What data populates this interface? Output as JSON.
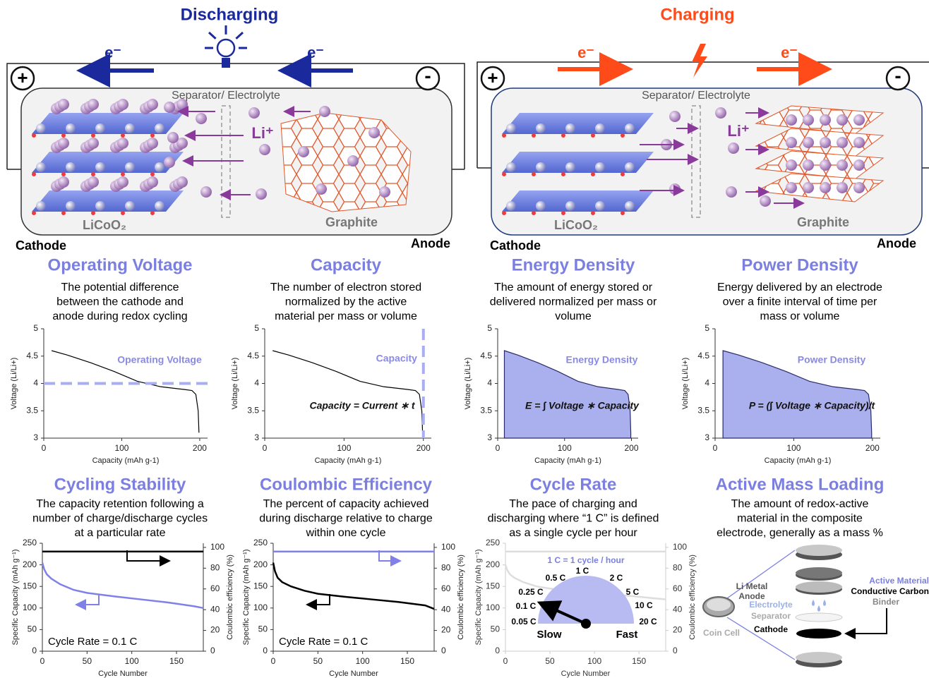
{
  "discharging": {
    "title": "Discharging",
    "electron_left": "e⁻",
    "electron_right": "e⁻",
    "plus": "+",
    "minus": "-",
    "separator": "Separator/ Electrolyte",
    "ion": "Li⁺",
    "cathode_material": "LiCoO₂",
    "anode_material": "Graphite",
    "cathode": "Cathode",
    "anode": "Anode"
  },
  "charging": {
    "title": "Charging",
    "electron_left": "e⁻",
    "electron_right": "e⁻",
    "plus": "+",
    "minus": "-",
    "separator": "Separator/ Electrolyte",
    "ion": "Li⁺",
    "cathode_material": "LiCoO₂",
    "anode_material": "Graphite",
    "cathode": "Cathode",
    "anode": "Anode"
  },
  "panels": [
    {
      "title": "Operating Voltage",
      "description": [
        "The potential difference",
        "between the cathode and",
        "anode during redox cycling"
      ],
      "chart": {
        "type": "line",
        "xlabel": "Capacity (mAh g-1)",
        "ylabel": "Voltage (Li/Li+)",
        "xlim": [
          0,
          210
        ],
        "ylim": [
          3,
          5
        ],
        "xticks": [
          0,
          100,
          200
        ],
        "yticks": [
          3,
          3.5,
          4,
          4.5,
          5
        ],
        "series": [
          {
            "color": "#000000",
            "x": [
              10,
              30,
              60,
              90,
              120,
              150,
              180,
              190,
              195,
              198,
              199
            ],
            "values": [
              4.6,
              4.52,
              4.38,
              4.22,
              4.04,
              3.94,
              3.89,
              3.87,
              3.8,
              3.5,
              3.1
            ]
          }
        ],
        "hline": 4,
        "annotation": "Operating Voltage"
      }
    },
    {
      "title": "Capacity",
      "description": [
        "The number of electron stored",
        "normalized by the active",
        "material per mass or volume"
      ],
      "chart": {
        "type": "line",
        "xlabel": "Capacity (mAh g-1)",
        "ylabel": "Voltage (Li/Li+)",
        "xlim": [
          0,
          210
        ],
        "ylim": [
          3,
          5
        ],
        "xticks": [
          0,
          100,
          200
        ],
        "yticks": [
          3,
          3.5,
          4,
          4.5,
          5
        ],
        "series": [
          {
            "color": "#000000",
            "x": [
              10,
              30,
              60,
              90,
              120,
              150,
              180,
              190,
              195,
              198,
              199
            ],
            "values": [
              4.6,
              4.52,
              4.38,
              4.22,
              4.04,
              3.94,
              3.89,
              3.87,
              3.8,
              3.5,
              3.1
            ]
          }
        ],
        "vline": 200,
        "annotation": "Capacity",
        "equation": "Capacity = Current ∗ t"
      }
    },
    {
      "title": "Energy Density",
      "description": [
        "The amount of energy stored or",
        "delivered normalized per mass or",
        "volume"
      ],
      "chart": {
        "type": "area",
        "xlabel": "Capacity (mAh g-1)",
        "ylabel": "Voltage (Li/Li+)",
        "xlim": [
          0,
          210
        ],
        "ylim": [
          3,
          5
        ],
        "xticks": [
          0,
          100,
          200
        ],
        "yticks": [
          3,
          3.5,
          4,
          4.5,
          5
        ],
        "series": [
          {
            "color": "#2a2a6a",
            "fill": "#aab0ee",
            "x": [
              10,
              30,
              60,
              90,
              120,
              150,
              180,
              190,
              195,
              198,
              199
            ],
            "values": [
              4.6,
              4.52,
              4.38,
              4.22,
              4.04,
              3.94,
              3.89,
              3.87,
              3.8,
              3.5,
              3.1
            ]
          }
        ],
        "annotation": "Energy Density",
        "equation": "E = ∫ Voltage ∗ Capacity"
      }
    },
    {
      "title": "Power Density",
      "description": [
        "Energy delivered by an electrode",
        "over a finite interval of time per",
        "mass or volume"
      ],
      "chart": {
        "type": "area",
        "xlabel": "Capacity (mAh g-1)",
        "ylabel": "Voltage (Li/Li+)",
        "xlim": [
          0,
          210
        ],
        "ylim": [
          3,
          5
        ],
        "xticks": [
          0,
          100,
          200
        ],
        "yticks": [
          3,
          3.5,
          4,
          4.5,
          5
        ],
        "series": [
          {
            "color": "#2a2a6a",
            "fill": "#aab0ee",
            "x": [
              10,
              30,
              60,
              90,
              120,
              150,
              180,
              190,
              195,
              198,
              199
            ],
            "values": [
              4.6,
              4.52,
              4.38,
              4.22,
              4.04,
              3.94,
              3.89,
              3.87,
              3.8,
              3.5,
              3.1
            ]
          }
        ],
        "annotation": "Power Density",
        "equation": "P = (∫ Voltage ∗ Capacity)/t"
      }
    },
    {
      "title": "Cycling Stability",
      "description": [
        "The capacity retention following a",
        "number of charge/discharge cycles",
        "at a particular rate"
      ],
      "chart": {
        "type": "line",
        "xlabel": "Cycle Number",
        "ylabel": "Specific Capacity (mAh g⁻¹)",
        "y2label": "Coulombic efficiency (%)",
        "xlim": [
          0,
          180
        ],
        "ylim": [
          0,
          250
        ],
        "y2lim": [
          0,
          104
        ],
        "xticks": [
          0,
          50,
          100,
          150
        ],
        "yticks": [
          0,
          50,
          100,
          150,
          200,
          250
        ],
        "y2ticks": [
          0,
          20,
          40,
          60,
          80,
          100
        ],
        "series": [
          {
            "color": "#8080e8",
            "x": [
              0,
              2,
              5,
              10,
              20,
              35,
              50,
              80,
              110,
              140,
              170,
              180
            ],
            "values": [
              205,
              190,
              178,
              168,
              155,
              142,
              135,
              127,
              120,
              113,
              104,
              100
            ]
          },
          {
            "color": "#000000",
            "axis": "y2",
            "x": [
              0,
              180
            ],
            "values": [
              96,
              96
            ]
          }
        ],
        "note": "Cycle Rate = 0.1 C"
      }
    },
    {
      "title": "Coulombic Efficiency",
      "description": [
        "The percent of capacity achieved",
        "during discharge relative to charge",
        "within one cycle"
      ],
      "chart": {
        "type": "line",
        "xlabel": "Cycle Number",
        "ylabel": "Specific Capacity (mAh g⁻¹)",
        "y2label": "Coulombic efficiency (%)",
        "xlim": [
          0,
          180
        ],
        "ylim": [
          0,
          250
        ],
        "y2lim": [
          0,
          104
        ],
        "xticks": [
          0,
          50,
          100,
          150
        ],
        "yticks": [
          0,
          50,
          100,
          150,
          200,
          250
        ],
        "y2ticks": [
          0,
          20,
          40,
          60,
          80,
          100
        ],
        "series": [
          {
            "color": "#000000",
            "x": [
              0,
              2,
              5,
              10,
              20,
              35,
              50,
              80,
              110,
              140,
              170,
              180
            ],
            "values": [
              205,
              185,
              170,
              160,
              150,
              140,
              133,
              126,
              120,
              114,
              106,
              98
            ]
          },
          {
            "color": "#8080e8",
            "axis": "y2",
            "x": [
              0,
              180
            ],
            "values": [
              96,
              96
            ]
          }
        ],
        "note": "Cycle Rate = 0.1 C"
      }
    },
    {
      "title": "Cycle Rate",
      "description": [
        "The pace of charging and",
        "discharging where “1 C” is defined",
        "as a single cycle per hour"
      ],
      "chart": {
        "type": "line",
        "xlabel": "Cycle Number",
        "ylabel": "Specific Capacity (mAh g⁻¹)",
        "y2label": "Coulombic efficiency (%)",
        "xlim": [
          0,
          180
        ],
        "ylim": [
          0,
          250
        ],
        "y2lim": [
          0,
          104
        ],
        "xticks": [
          0,
          50,
          100,
          150
        ],
        "yticks": [
          0,
          50,
          100,
          150,
          200,
          250
        ],
        "y2ticks": [
          0,
          20,
          40,
          60,
          80,
          100
        ],
        "series": [
          {
            "color": "#dddddd",
            "x": [
              0,
              2,
              5,
              10,
              20,
              35,
              50,
              80,
              110,
              140,
              170,
              180
            ],
            "values": [
              200,
              188,
              178,
              170,
              160,
              150,
              145,
              138,
              133,
              128,
              122,
              120
            ]
          },
          {
            "color": "#dddddd",
            "axis": "y2",
            "x": [
              0,
              180
            ],
            "values": [
              96,
              96
            ]
          }
        ],
        "gauge": {
          "caption": "1 C = 1 cycle / hour",
          "rates": [
            "0.05 C",
            "0.1 C",
            "0.25 C",
            "0.5 C",
            "1 C",
            "2 C",
            "5 C",
            "10 C",
            "20 C"
          ],
          "slow": "Slow",
          "fast": "Fast"
        }
      }
    },
    {
      "title": "Active Mass Loading",
      "description": [
        "The amount of redox-active",
        "material in the composite",
        "electrode, generally as a mass %"
      ],
      "cell": {
        "coin": "Coin Cell",
        "anode": [
          "Li Metal",
          "Anode"
        ],
        "electrolyte": "Electrolyte",
        "separator": "Separator",
        "cathode": "Cathode",
        "components": [
          "Active Material",
          "Conductive Carbon",
          "Binder"
        ]
      }
    }
  ]
}
